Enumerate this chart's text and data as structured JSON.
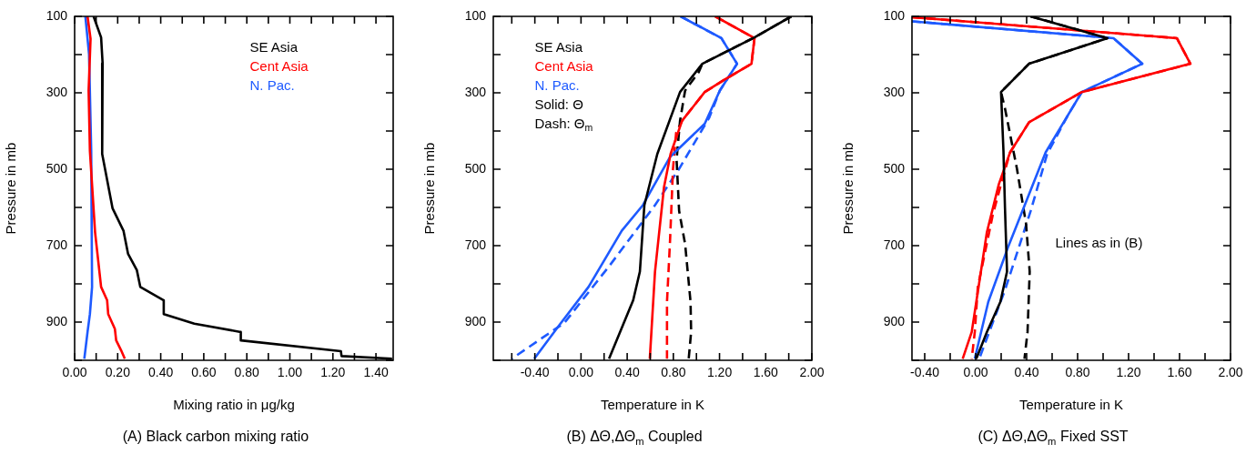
{
  "chart_data": [
    {
      "type": "line",
      "title": "(A) Black carbon mixing ratio",
      "xlabel": "Mixing ratio in μg/kg",
      "ylabel": "Pressure in mb",
      "xlim": [
        0,
        1.48
      ],
      "ylim": [
        1000,
        100
      ],
      "xticks": [
        {
          "value": 0,
          "label": "0.00"
        },
        {
          "value": 0.1,
          "label": null
        },
        {
          "value": 0.2,
          "label": "0.20"
        },
        {
          "value": 0.3,
          "label": null
        },
        {
          "value": 0.4,
          "label": "0.40"
        },
        {
          "value": 0.5,
          "label": null
        },
        {
          "value": 0.6,
          "label": "0.60"
        },
        {
          "value": 0.7,
          "label": null
        },
        {
          "value": 0.8,
          "label": "0.80"
        },
        {
          "value": 0.9,
          "label": null
        },
        {
          "value": 1.0,
          "label": "1.00"
        },
        {
          "value": 1.1,
          "label": null
        },
        {
          "value": 1.2,
          "label": "1.20"
        },
        {
          "value": 1.3,
          "label": null
        },
        {
          "value": 1.4,
          "label": "1.40"
        }
      ],
      "yticks": [
        100,
        {
          "value": 200,
          "label": null
        },
        300,
        {
          "value": 400,
          "label": null
        },
        500,
        {
          "value": 600,
          "label": null
        },
        700,
        {
          "value": 800,
          "label": null
        },
        900,
        {
          "value": 1000,
          "label": null
        }
      ],
      "legend": "top right",
      "series": [
        {
          "name": "SE Asia",
          "color": "#000000",
          "x": [
            0.088,
            0.123,
            0.13,
            0.128,
            0.176,
            0.227,
            0.248,
            0.289,
            0.305,
            0.414,
            0.414,
            0.556,
            0.772,
            0.772,
            1.237,
            1.24,
            1.475
          ],
          "values": [
            100,
            155,
            223,
            460,
            602,
            661,
            721,
            764,
            808,
            843,
            879,
            904,
            926,
            948,
            976,
            989,
            996
          ]
        },
        {
          "name": "Cent Asia",
          "color": "#ff0000",
          "x": [
            0.06,
            0.074,
            0.065,
            0.071,
            0.095,
            0.123,
            0.151,
            0.156,
            0.187,
            0.193,
            0.216,
            0.233
          ],
          "values": [
            100,
            159,
            294,
            452,
            665,
            808,
            843,
            879,
            918,
            948,
            974,
            996
          ]
        },
        {
          "name": "N. Pac.",
          "color": "#1e5aff",
          "x": [
            0.05,
            0.067,
            0.077,
            0.081,
            0.071,
            0.06,
            0.045
          ],
          "values": [
            100,
            199,
            452,
            808,
            879,
            926,
            996
          ]
        }
      ]
    },
    {
      "type": "line",
      "title": "(B) ΔΘ,ΔΘ$_{m}$ Coupled",
      "xlabel": "Temperature in K",
      "ylabel": "Pressure in mb",
      "xlim": [
        -0.76,
        2.0
      ],
      "ylim": [
        1000,
        100
      ],
      "xticks": [
        {
          "value": -0.6,
          "label": null
        },
        {
          "value": -0.4,
          "label": "-0.40"
        },
        {
          "value": -0.2,
          "label": null
        },
        {
          "value": 0,
          "label": "0.00"
        },
        {
          "value": 0.2,
          "label": null
        },
        {
          "value": 0.4,
          "label": "0.40"
        },
        {
          "value": 0.6,
          "label": null
        },
        {
          "value": 0.8,
          "label": "0.80"
        },
        {
          "value": 1.0,
          "label": null
        },
        {
          "value": 1.2,
          "label": "1.20"
        },
        {
          "value": 1.4,
          "label": null
        },
        {
          "value": 1.6,
          "label": "1.60"
        },
        {
          "value": 1.8,
          "label": null
        },
        {
          "value": 2.0,
          "label": "2.00"
        }
      ],
      "yticks": [
        100,
        {
          "value": 200,
          "label": null
        },
        300,
        {
          "value": 400,
          "label": null
        },
        500,
        {
          "value": 600,
          "label": null
        },
        700,
        {
          "value": 800,
          "label": null
        },
        900,
        {
          "value": 1000,
          "label": null
        }
      ],
      "legend": "top left",
      "annotations": [
        "Solid: Θ",
        "Dash: Θ$_{m}$"
      ],
      "series": [
        {
          "name": "SE Asia",
          "color": "#000000",
          "line_style": "solid",
          "x": [
            1.822,
            1.503,
            1.051,
            0.858,
            0.661,
            0.549,
            0.51,
            0.452,
            0.243
          ],
          "values": [
            100,
            155,
            224,
            298,
            460,
            594,
            768,
            843,
            996
          ]
        },
        {
          "name": "Cent Asia",
          "color": "#ff0000",
          "line_style": "solid",
          "x": [
            1.163,
            1.503,
            1.477,
            1.242,
            1.072,
            0.876,
            0.776,
            0.719,
            0.641,
            0.596
          ],
          "values": [
            100,
            157,
            224,
            266,
            298,
            373,
            460,
            547,
            768,
            996
          ]
        },
        {
          "name": "N. Pac.",
          "color": "#1e5aff",
          "line_style": "solid",
          "x": [
            0.863,
            1.216,
            1.352,
            1.203,
            1.072,
            0.771,
            0.536,
            0.353,
            0.065,
            -0.183,
            -0.405
          ],
          "values": [
            100,
            157,
            224,
            294,
            381,
            468,
            594,
            661,
            808,
            906,
            996
          ]
        },
        {
          "color": "#000000",
          "line_style": "dashed",
          "x": [
            1.822,
            1.503,
            1.051,
            1.02,
            0.902,
            0.858,
            0.828,
            0.85,
            0.902,
            0.949,
            0.954,
            0.933
          ],
          "values": [
            100,
            155,
            224,
            246,
            294,
            373,
            475,
            609,
            696,
            847,
            926,
            996
          ]
        },
        {
          "color": "#ff0000",
          "line_style": "dashed",
          "x": [
            1.163,
            1.503,
            1.477,
            1.242,
            1.072,
            0.876,
            0.824,
            0.797,
            0.771,
            0.745,
            0.745
          ],
          "values": [
            100,
            157,
            224,
            266,
            298,
            373,
            405,
            499,
            689,
            847,
            996
          ]
        },
        {
          "color": "#1e5aff",
          "line_style": "dashed",
          "x": [
            0.863,
            1.216,
            1.352,
            1.203,
            1.111,
            0.85,
            0.641,
            0.248,
            -0.144,
            -0.601
          ],
          "values": [
            100,
            157,
            224,
            294,
            365,
            499,
            594,
            752,
            902,
            996
          ]
        }
      ]
    },
    {
      "type": "line",
      "title": "(C) ΔΘ,ΔΘ$_{m}$ Fixed SST",
      "xlabel": "Temperature in K",
      "ylabel": "Pressure in mb",
      "xlim": [
        -0.5,
        2.0
      ],
      "ylim": [
        1000,
        100
      ],
      "xticks": [
        {
          "value": -0.4,
          "label": "-0.40"
        },
        {
          "value": -0.2,
          "label": null
        },
        {
          "value": 0,
          "label": "0.00"
        },
        {
          "value": 0.2,
          "label": null
        },
        {
          "value": 0.4,
          "label": "0.40"
        },
        {
          "value": 0.6,
          "label": null
        },
        {
          "value": 0.8,
          "label": "0.80"
        },
        {
          "value": 1.0,
          "label": null
        },
        {
          "value": 1.2,
          "label": "1.20"
        },
        {
          "value": 1.4,
          "label": null
        },
        {
          "value": 1.6,
          "label": "1.60"
        },
        {
          "value": 1.8,
          "label": null
        },
        {
          "value": 2.0,
          "label": "2.00"
        }
      ],
      "yticks": [
        100,
        {
          "value": 200,
          "label": null
        },
        300,
        {
          "value": 400,
          "label": null
        },
        500,
        {
          "value": 600,
          "label": null
        },
        700,
        {
          "value": 800,
          "label": null
        },
        900,
        {
          "value": 1000,
          "label": null
        }
      ],
      "annotations": [
        "Lines as in (B)"
      ],
      "series": [
        {
          "color": "#000000",
          "line_style": "solid",
          "x": [
            0.431,
            1.034,
            0.419,
            0.199,
            0.218,
            0.23,
            0.246,
            0.194,
            0.088,
            0.005
          ],
          "values": [
            100,
            157,
            224,
            298,
            452,
            602,
            768,
            847,
            926,
            996
          ]
        },
        {
          "color": "#ff0000",
          "line_style": "solid",
          "x": [
            -0.5,
            1.579,
            1.685,
            0.833,
            0.419,
            0.27,
            0.182,
            0.088,
            -0.031,
            -0.102
          ],
          "values": [
            102,
            157,
            224,
            298,
            377,
            456,
            539,
            665,
            926,
            996
          ]
        },
        {
          "color": "#1e5aff",
          "line_style": "solid",
          "x": [
            -0.5,
            1.082,
            1.307,
            0.833,
            0.549,
            0.253,
            0.099,
            -0.007
          ],
          "values": [
            113,
            157,
            224,
            298,
            456,
            705,
            847,
            996
          ]
        },
        {
          "color": "#000000",
          "line_style": "dashed",
          "x": [
            0.431,
            1.034,
            0.419,
            0.199,
            0.23,
            0.324,
            0.395,
            0.424,
            0.407,
            0.383
          ],
          "values": [
            100,
            157,
            224,
            298,
            341,
            499,
            642,
            768,
            926,
            996
          ]
        },
        {
          "color": "#ff0000",
          "line_style": "dashed",
          "x": [
            -0.5,
            1.579,
            1.685,
            0.833,
            0.419,
            0.27,
            0.206,
            0.135,
            0.017,
            -0.007,
            -0.031
          ],
          "values": [
            102,
            157,
            224,
            298,
            377,
            456,
            531,
            618,
            808,
            926,
            996
          ]
        },
        {
          "color": "#1e5aff",
          "line_style": "dashed",
          "x": [
            -0.5,
            1.082,
            1.307,
            0.833,
            0.727,
            0.561,
            0.431,
            0.23,
            0.028
          ],
          "values": [
            113,
            157,
            224,
            298,
            357,
            460,
            610,
            816,
            996
          ]
        }
      ]
    }
  ]
}
